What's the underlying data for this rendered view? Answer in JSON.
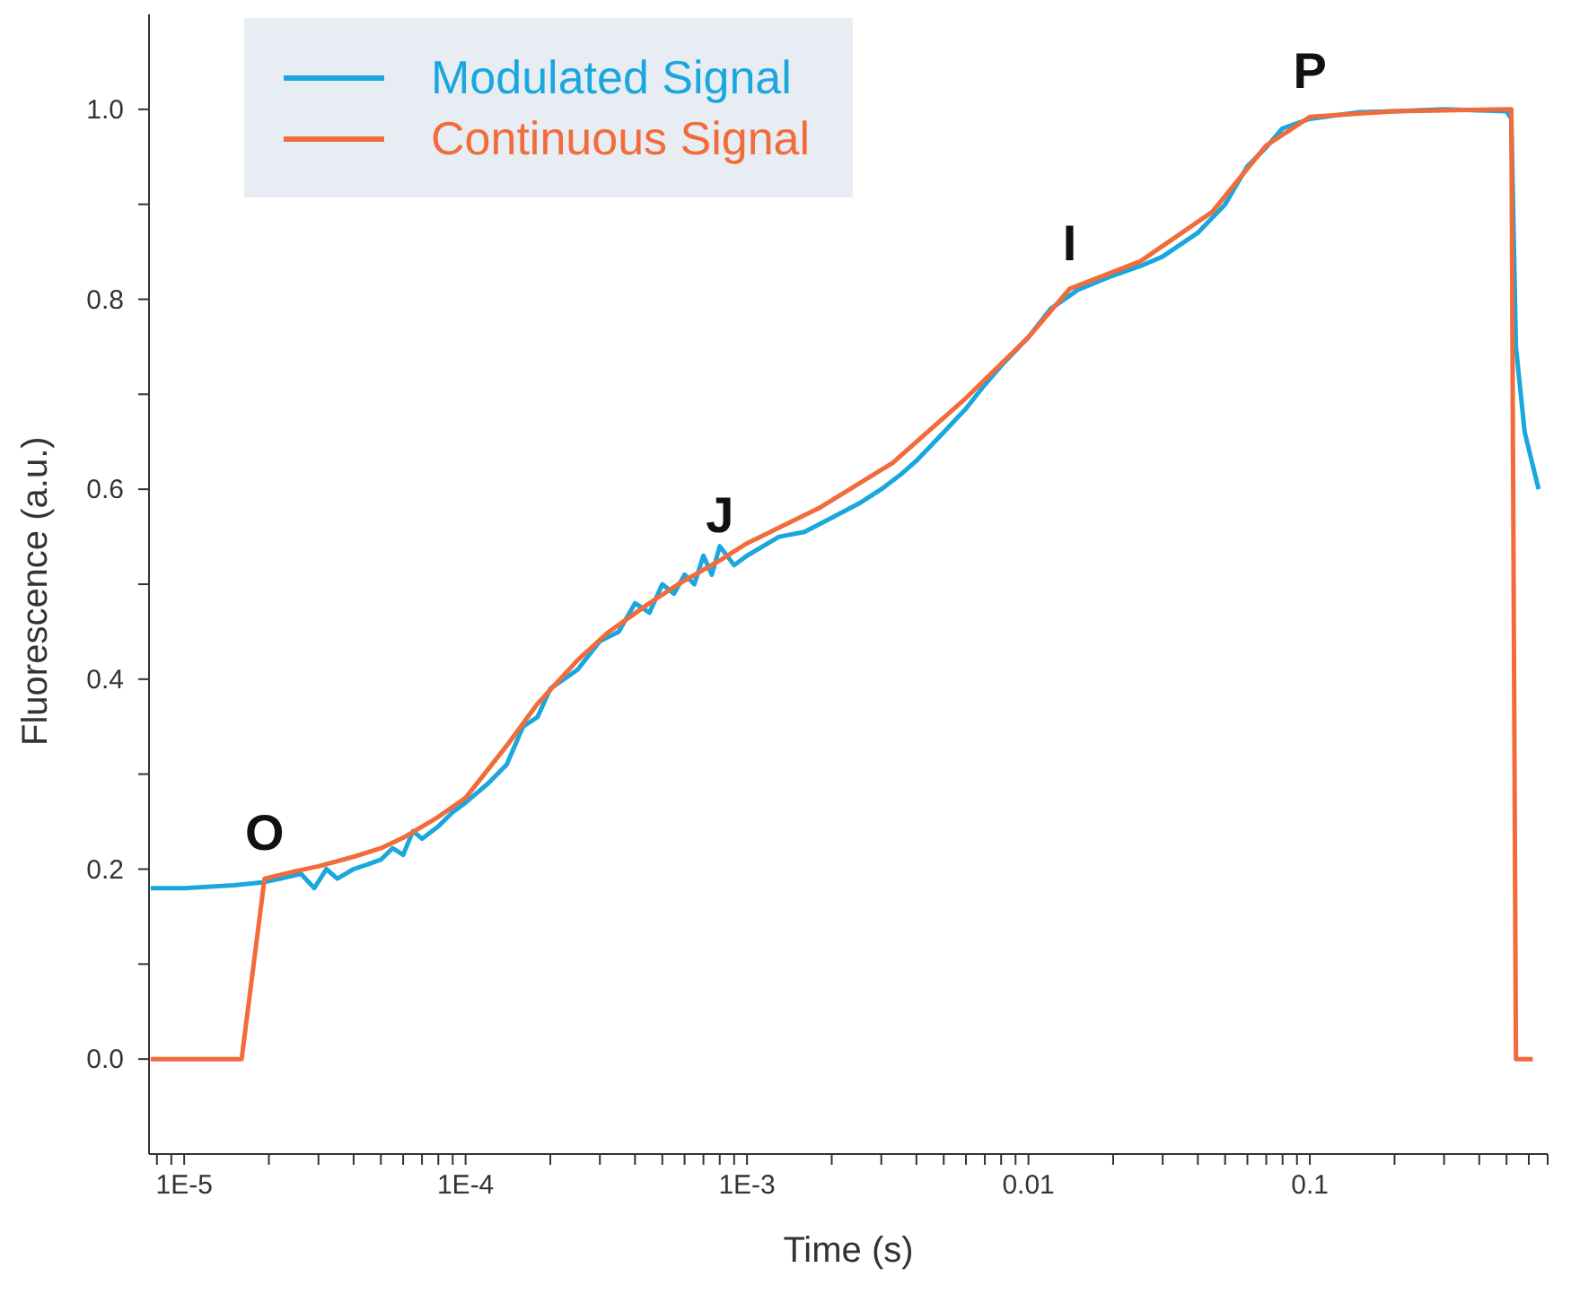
{
  "chart_data": {
    "type": "line",
    "xlabel": "Time (s)",
    "ylabel": "Fluorescence (a.u.)",
    "log": "x",
    "legend": "top left",
    "grid": false,
    "marker": "none",
    "line_style": "solid",
    "xlim": [
      7.5e-06,
      0.7
    ],
    "ylim": [
      -0.1,
      1.1
    ],
    "xticks": [
      {
        "value": 8e-06,
        "label": null
      },
      {
        "value": 9e-06,
        "label": null
      },
      {
        "value": 1e-05,
        "label": "1E-5"
      },
      {
        "value": 2e-05,
        "label": null
      },
      {
        "value": 3e-05,
        "label": null
      },
      {
        "value": 4e-05,
        "label": null
      },
      {
        "value": 5e-05,
        "label": null
      },
      {
        "value": 6e-05,
        "label": null
      },
      {
        "value": 7e-05,
        "label": null
      },
      {
        "value": 8e-05,
        "label": null
      },
      {
        "value": 9e-05,
        "label": null
      },
      {
        "value": 0.0001,
        "label": "1E-4"
      },
      {
        "value": 0.0002,
        "label": null
      },
      {
        "value": 0.0003,
        "label": null
      },
      {
        "value": 0.0004,
        "label": null
      },
      {
        "value": 0.0005,
        "label": null
      },
      {
        "value": 0.0006,
        "label": null
      },
      {
        "value": 0.0007,
        "label": null
      },
      {
        "value": 0.0008,
        "label": null
      },
      {
        "value": 0.0009,
        "label": null
      },
      {
        "value": 0.001,
        "label": "1E-3"
      },
      {
        "value": 0.002,
        "label": null
      },
      {
        "value": 0.003,
        "label": null
      },
      {
        "value": 0.004,
        "label": null
      },
      {
        "value": 0.005,
        "label": null
      },
      {
        "value": 0.006,
        "label": null
      },
      {
        "value": 0.007,
        "label": null
      },
      {
        "value": 0.008,
        "label": null
      },
      {
        "value": 0.009,
        "label": null
      },
      0.01,
      {
        "value": 0.02,
        "label": null
      },
      {
        "value": 0.03,
        "label": null
      },
      {
        "value": 0.04,
        "label": null
      },
      {
        "value": 0.05,
        "label": null
      },
      {
        "value": 0.06,
        "label": null
      },
      {
        "value": 0.07,
        "label": null
      },
      {
        "value": 0.08,
        "label": null
      },
      {
        "value": 0.09,
        "label": null
      },
      0.1,
      {
        "value": 0.2,
        "label": null
      },
      {
        "value": 0.3,
        "label": null
      },
      {
        "value": 0.4,
        "label": null
      },
      {
        "value": 0.5,
        "label": null
      },
      {
        "value": 0.6,
        "label": null
      },
      {
        "value": 0.7,
        "label": null
      }
    ],
    "yticks": [
      {
        "value": 0,
        "label": "0.0"
      },
      {
        "value": 0.1,
        "label": null
      },
      {
        "value": 0.2,
        "label": "0.2"
      },
      {
        "value": 0.3,
        "label": null
      },
      {
        "value": 0.4,
        "label": "0.4"
      },
      {
        "value": 0.5,
        "label": null
      },
      {
        "value": 0.6,
        "label": "0.6"
      },
      {
        "value": 0.7,
        "label": null
      },
      {
        "value": 0.8,
        "label": "0.8"
      },
      {
        "value": 0.9,
        "label": null
      },
      {
        "value": 1,
        "label": "1.0"
      }
    ],
    "annotations": [
      {
        "text": "O",
        "x": 1.93e-05,
        "y": 0.19
      },
      {
        "text": "J",
        "x": 0.0008,
        "y": 0.525
      },
      {
        "text": "I",
        "x": 0.014,
        "y": 0.811
      },
      {
        "text": "P",
        "x": 0.1,
        "y": 0.992
      }
    ],
    "series": [
      {
        "name": "Modulated Signal",
        "color": "#1aa7de",
        "x": [
          7.6e-06,
          1e-05,
          1.5e-05,
          1.9e-05,
          2.2e-05,
          2.6e-05,
          2.9e-05,
          3.2e-05,
          3.5e-05,
          4e-05,
          4.5e-05,
          5e-05,
          5.5e-05,
          6e-05,
          6.5e-05,
          7e-05,
          8e-05,
          9e-05,
          0.0001,
          0.00012,
          0.00014,
          0.00016,
          0.00018,
          0.0002,
          0.00025,
          0.0003,
          0.00035,
          0.0004,
          0.00045,
          0.0005,
          0.00055,
          0.0006,
          0.00065,
          0.0007,
          0.00075,
          0.0008,
          0.0009,
          0.001,
          0.0013,
          0.0016,
          0.002,
          0.0025,
          0.003,
          0.0035,
          0.004,
          0.005,
          0.006,
          0.007,
          0.008,
          0.01,
          0.012,
          0.015,
          0.02,
          0.025,
          0.03,
          0.04,
          0.05,
          0.06,
          0.07,
          0.08,
          0.1,
          0.15,
          0.2,
          0.3,
          0.5,
          0.52,
          0.54,
          0.58,
          0.65
        ],
        "values": [
          0.18,
          0.18,
          0.183,
          0.186,
          0.19,
          0.195,
          0.18,
          0.2,
          0.19,
          0.2,
          0.205,
          0.21,
          0.222,
          0.215,
          0.24,
          0.232,
          0.245,
          0.26,
          0.27,
          0.29,
          0.31,
          0.35,
          0.36,
          0.39,
          0.41,
          0.44,
          0.45,
          0.48,
          0.47,
          0.5,
          0.49,
          0.51,
          0.5,
          0.53,
          0.51,
          0.54,
          0.52,
          0.53,
          0.55,
          0.555,
          0.57,
          0.585,
          0.6,
          0.615,
          0.63,
          0.66,
          0.685,
          0.71,
          0.73,
          0.76,
          0.79,
          0.81,
          0.825,
          0.835,
          0.845,
          0.87,
          0.9,
          0.94,
          0.96,
          0.98,
          0.99,
          0.997,
          0.998,
          1.0,
          0.998,
          0.99,
          0.75,
          0.66,
          0.6
        ]
      },
      {
        "name": "Continuous Signal",
        "color": "#f26b3a",
        "x": [
          7.6e-06,
          1.6e-05,
          1.93e-05,
          2.5e-05,
          3e-05,
          4e-05,
          5e-05,
          6e-05,
          8e-05,
          0.0001,
          0.00014,
          0.00018,
          0.00025,
          0.00032,
          0.00045,
          0.00057,
          0.0008,
          0.001,
          0.0018,
          0.0033,
          0.0059,
          0.01,
          0.014,
          0.025,
          0.045,
          0.07,
          0.1,
          0.2,
          0.5,
          0.52,
          0.54,
          0.62
        ],
        "values": [
          0,
          0,
          0.19,
          0.198,
          0.203,
          0.213,
          0.222,
          0.233,
          0.255,
          0.275,
          0.33,
          0.374,
          0.42,
          0.449,
          0.48,
          0.5,
          0.525,
          0.543,
          0.58,
          0.628,
          0.694,
          0.76,
          0.811,
          0.84,
          0.892,
          0.962,
          0.992,
          0.998,
          1.0,
          1.0,
          0,
          0
        ]
      }
    ]
  }
}
